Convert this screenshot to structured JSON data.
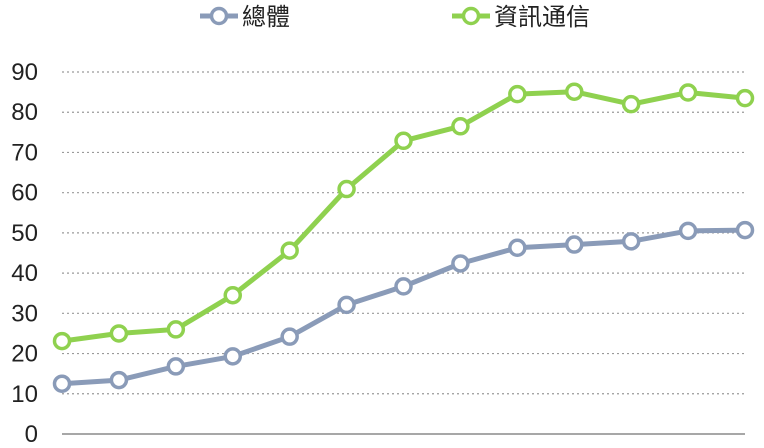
{
  "chart_data": {
    "type": "line",
    "title": "",
    "xlabel": "",
    "ylabel": "",
    "ylim": [
      0,
      90
    ],
    "yticks": [
      0,
      10,
      20,
      30,
      40,
      50,
      60,
      70,
      80,
      90
    ],
    "grid": true,
    "legend_position": "top",
    "x": [
      1,
      2,
      3,
      4,
      5,
      6,
      7,
      8,
      9,
      10,
      11,
      12,
      13
    ],
    "series": [
      {
        "name": "總體",
        "color": "#8a9bb8",
        "values": [
          12.5,
          13.4,
          16.8,
          19.3,
          24.2,
          32.1,
          36.7,
          42.4,
          46.3,
          47.1,
          47.9,
          50.5,
          50.7
        ]
      },
      {
        "name": "資訊通信",
        "color": "#8fd14f",
        "values": [
          23.1,
          25.0,
          26.0,
          34.5,
          45.6,
          60.9,
          72.9,
          76.5,
          84.5,
          85.1,
          82.0,
          84.9,
          83.5
        ]
      }
    ]
  }
}
